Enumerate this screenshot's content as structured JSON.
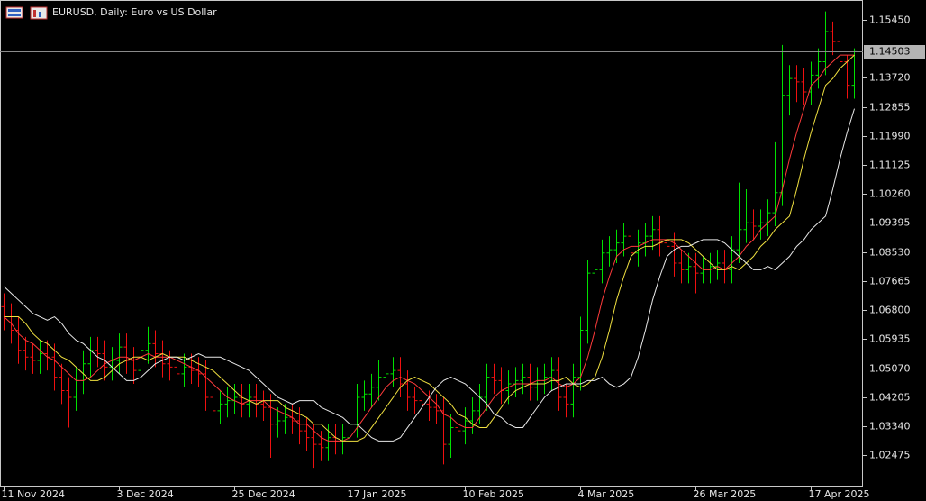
{
  "chart_data": {
    "type": "ohlc",
    "title": "EURUSD, Daily:  Euro vs US Dollar",
    "categories": [
      "11 Nov 2024",
      null,
      null,
      null,
      null,
      null,
      null,
      null,
      null,
      null,
      null,
      null,
      null,
      null,
      null,
      null,
      "3 Dec 2024",
      null,
      null,
      null,
      null,
      null,
      null,
      null,
      null,
      null,
      null,
      null,
      null,
      null,
      null,
      null,
      "25 Dec 2024",
      null,
      null,
      null,
      null,
      null,
      null,
      null,
      null,
      null,
      null,
      null,
      null,
      null,
      null,
      null,
      "17 Jan 2025",
      null,
      null,
      null,
      null,
      null,
      null,
      null,
      null,
      null,
      null,
      null,
      null,
      null,
      null,
      null,
      "10 Feb 2025",
      null,
      null,
      null,
      null,
      null,
      null,
      null,
      null,
      null,
      null,
      null,
      null,
      null,
      null,
      null,
      "4 Mar 2025",
      null,
      null,
      null,
      null,
      null,
      null,
      null,
      null,
      null,
      null,
      null,
      null,
      null,
      null,
      null,
      "26 Mar 2025",
      null,
      null,
      null,
      null,
      null,
      null,
      null,
      null,
      null,
      null,
      null,
      null,
      null,
      null,
      null,
      "17 Apr 2025",
      null,
      null,
      null,
      null,
      null,
      null
    ],
    "open": [
      1.069,
      1.066,
      1.062,
      1.056,
      1.054,
      1.053,
      1.055,
      1.054,
      1.048,
      1.044,
      1.042,
      1.047,
      1.052,
      1.056,
      1.055,
      1.051,
      1.053,
      1.057,
      1.053,
      1.05,
      1.056,
      1.058,
      1.055,
      1.052,
      1.051,
      1.049,
      1.051,
      1.05,
      1.049,
      1.042,
      1.038,
      1.04,
      1.041,
      1.042,
      1.04,
      1.042,
      1.04,
      1.039,
      1.034,
      1.035,
      1.036,
      1.035,
      1.032,
      1.03,
      1.028,
      1.027,
      1.03,
      1.029,
      1.03,
      1.034,
      1.042,
      1.043,
      1.045,
      1.048,
      1.049,
      1.05,
      1.046,
      1.042,
      1.041,
      1.04,
      1.039,
      1.038,
      1.028,
      1.033,
      1.032,
      1.035,
      1.038,
      1.042,
      1.048,
      1.047,
      1.044,
      1.046,
      1.047,
      1.048,
      1.045,
      1.047,
      1.048,
      1.05,
      1.042,
      1.04,
      1.048,
      1.062,
      1.079,
      1.08,
      1.085,
      1.086,
      1.088,
      1.09,
      1.085,
      1.088,
      1.09,
      1.092,
      1.088,
      1.087,
      1.082,
      1.08,
      1.081,
      1.079,
      1.08,
      1.081,
      1.082,
      1.08,
      1.086,
      1.092,
      1.094,
      1.093,
      1.094,
      1.097,
      1.103,
      1.132,
      1.137,
      1.136,
      1.133,
      1.138,
      1.142,
      1.151,
      1.148,
      1.142,
      1.135
    ],
    "high": [
      1.073,
      1.07,
      1.066,
      1.06,
      1.058,
      1.059,
      1.059,
      1.058,
      1.052,
      1.048,
      1.051,
      1.056,
      1.06,
      1.06,
      1.059,
      1.057,
      1.061,
      1.061,
      1.057,
      1.06,
      1.063,
      1.062,
      1.059,
      1.056,
      1.055,
      1.055,
      1.055,
      1.054,
      1.053,
      1.046,
      1.044,
      1.045,
      1.046,
      1.046,
      1.046,
      1.046,
      1.044,
      1.043,
      1.039,
      1.04,
      1.04,
      1.039,
      1.036,
      1.034,
      1.032,
      1.034,
      1.034,
      1.034,
      1.038,
      1.046,
      1.047,
      1.049,
      1.053,
      1.053,
      1.054,
      1.054,
      1.05,
      1.045,
      1.044,
      1.044,
      1.043,
      1.042,
      1.037,
      1.037,
      1.039,
      1.042,
      1.046,
      1.052,
      1.052,
      1.051,
      1.05,
      1.051,
      1.052,
      1.052,
      1.051,
      1.052,
      1.054,
      1.054,
      1.046,
      1.052,
      1.066,
      1.083,
      1.084,
      1.089,
      1.09,
      1.092,
      1.094,
      1.094,
      1.092,
      1.094,
      1.096,
      1.096,
      1.091,
      1.091,
      1.086,
      1.085,
      1.085,
      1.084,
      1.085,
      1.086,
      1.086,
      1.09,
      1.106,
      1.104,
      1.098,
      1.098,
      1.101,
      1.118,
      1.147,
      1.141,
      1.141,
      1.14,
      1.142,
      1.146,
      1.157,
      1.154,
      1.152,
      1.144,
      1.146
    ],
    "low": [
      1.062,
      1.058,
      1.052,
      1.05,
      1.049,
      1.049,
      1.05,
      1.044,
      1.04,
      1.033,
      1.038,
      1.043,
      1.048,
      1.051,
      1.047,
      1.047,
      1.049,
      1.049,
      1.046,
      1.046,
      1.052,
      1.051,
      1.048,
      1.047,
      1.045,
      1.045,
      1.046,
      1.045,
      1.038,
      1.034,
      1.034,
      1.036,
      1.037,
      1.036,
      1.036,
      1.036,
      1.035,
      1.024,
      1.03,
      1.031,
      1.031,
      1.028,
      1.026,
      1.021,
      1.023,
      1.023,
      1.025,
      1.025,
      1.026,
      1.03,
      1.038,
      1.039,
      1.041,
      1.044,
      1.045,
      1.042,
      1.038,
      1.037,
      1.036,
      1.035,
      1.034,
      1.022,
      1.024,
      1.028,
      1.028,
      1.031,
      1.034,
      1.038,
      1.043,
      1.04,
      1.04,
      1.042,
      1.043,
      1.041,
      1.041,
      1.043,
      1.044,
      1.038,
      1.036,
      1.036,
      1.044,
      1.058,
      1.075,
      1.076,
      1.081,
      1.082,
      1.084,
      1.081,
      1.081,
      1.084,
      1.086,
      1.084,
      1.083,
      1.078,
      1.076,
      1.076,
      1.073,
      1.076,
      1.076,
      1.077,
      1.076,
      1.076,
      1.082,
      1.088,
      1.089,
      1.089,
      1.09,
      1.093,
      1.099,
      1.126,
      1.13,
      1.129,
      1.129,
      1.134,
      1.138,
      1.144,
      1.138,
      1.131,
      1.131
    ],
    "close": [
      1.066,
      1.062,
      1.056,
      1.054,
      1.053,
      1.055,
      1.054,
      1.048,
      1.044,
      1.042,
      1.047,
      1.052,
      1.056,
      1.055,
      1.051,
      1.053,
      1.057,
      1.053,
      1.05,
      1.056,
      1.058,
      1.055,
      1.052,
      1.051,
      1.049,
      1.051,
      1.05,
      1.049,
      1.042,
      1.038,
      1.04,
      1.041,
      1.042,
      1.04,
      1.042,
      1.04,
      1.039,
      1.034,
      1.035,
      1.036,
      1.035,
      1.032,
      1.03,
      1.028,
      1.027,
      1.03,
      1.029,
      1.03,
      1.034,
      1.042,
      1.043,
      1.045,
      1.048,
      1.049,
      1.05,
      1.046,
      1.042,
      1.041,
      1.04,
      1.039,
      1.038,
      1.028,
      1.033,
      1.032,
      1.035,
      1.038,
      1.042,
      1.048,
      1.047,
      1.044,
      1.046,
      1.047,
      1.048,
      1.045,
      1.047,
      1.048,
      1.05,
      1.042,
      1.04,
      1.048,
      1.062,
      1.079,
      1.08,
      1.085,
      1.086,
      1.088,
      1.09,
      1.085,
      1.088,
      1.09,
      1.092,
      1.088,
      1.087,
      1.082,
      1.08,
      1.081,
      1.079,
      1.08,
      1.081,
      1.082,
      1.08,
      1.086,
      1.092,
      1.094,
      1.093,
      1.094,
      1.097,
      1.103,
      1.132,
      1.137,
      1.136,
      1.133,
      1.138,
      1.142,
      1.151,
      1.148,
      1.142,
      1.135,
      1.145
    ],
    "up_color": "#00e000",
    "down_color": "#f01010",
    "lines": [
      {
        "color": "#ff3b3b",
        "values": [
          1.066,
          1.064,
          1.061,
          1.059,
          1.058,
          1.056,
          1.054,
          1.053,
          1.051,
          1.049,
          1.047,
          1.047,
          1.048,
          1.05,
          1.052,
          1.053,
          1.054,
          1.054,
          1.053,
          1.054,
          1.055,
          1.054,
          1.054,
          1.054,
          1.053,
          1.052,
          1.051,
          1.05,
          1.048,
          1.046,
          1.044,
          1.042,
          1.041,
          1.04,
          1.041,
          1.041,
          1.041,
          1.039,
          1.038,
          1.037,
          1.036,
          1.034,
          1.034,
          1.032,
          1.03,
          1.029,
          1.029,
          1.029,
          1.03,
          1.033,
          1.036,
          1.039,
          1.042,
          1.045,
          1.047,
          1.048,
          1.047,
          1.046,
          1.044,
          1.042,
          1.04,
          1.037,
          1.036,
          1.034,
          1.033,
          1.033,
          1.036,
          1.039,
          1.042,
          1.044,
          1.045,
          1.046,
          1.046,
          1.046,
          1.047,
          1.047,
          1.048,
          1.046,
          1.045,
          1.046,
          1.048,
          1.054,
          1.062,
          1.071,
          1.078,
          1.084,
          1.086,
          1.087,
          1.087,
          1.088,
          1.089,
          1.089,
          1.089,
          1.088,
          1.086,
          1.084,
          1.082,
          1.08,
          1.08,
          1.081,
          1.08,
          1.082,
          1.084,
          1.087,
          1.089,
          1.092,
          1.094,
          1.096,
          1.104,
          1.113,
          1.121,
          1.128,
          1.135,
          1.137,
          1.14,
          1.142,
          1.144,
          1.144,
          1.144
        ]
      },
      {
        "color": "#f0e040",
        "values": [
          1.066,
          1.066,
          1.066,
          1.064,
          1.061,
          1.059,
          1.058,
          1.056,
          1.054,
          1.053,
          1.051,
          1.049,
          1.047,
          1.047,
          1.048,
          1.05,
          1.052,
          1.053,
          1.054,
          1.054,
          1.053,
          1.054,
          1.055,
          1.054,
          1.054,
          1.054,
          1.053,
          1.052,
          1.051,
          1.05,
          1.048,
          1.046,
          1.044,
          1.042,
          1.041,
          1.04,
          1.041,
          1.041,
          1.041,
          1.039,
          1.038,
          1.037,
          1.036,
          1.034,
          1.034,
          1.032,
          1.03,
          1.029,
          1.029,
          1.029,
          1.03,
          1.033,
          1.036,
          1.039,
          1.042,
          1.045,
          1.047,
          1.048,
          1.047,
          1.046,
          1.044,
          1.042,
          1.04,
          1.037,
          1.036,
          1.034,
          1.033,
          1.033,
          1.036,
          1.039,
          1.042,
          1.044,
          1.045,
          1.046,
          1.046,
          1.046,
          1.047,
          1.047,
          1.048,
          1.046,
          1.045,
          1.046,
          1.048,
          1.054,
          1.062,
          1.071,
          1.078,
          1.084,
          1.086,
          1.087,
          1.087,
          1.088,
          1.089,
          1.089,
          1.089,
          1.088,
          1.086,
          1.084,
          1.082,
          1.08,
          1.08,
          1.081,
          1.08,
          1.082,
          1.084,
          1.087,
          1.089,
          1.092,
          1.094,
          1.096,
          1.104,
          1.113,
          1.121,
          1.128,
          1.135,
          1.137,
          1.14,
          1.142,
          1.144
        ]
      },
      {
        "color": "#e8e8e8",
        "values": [
          1.075,
          1.073,
          1.071,
          1.069,
          1.067,
          1.066,
          1.065,
          1.066,
          1.064,
          1.061,
          1.059,
          1.058,
          1.056,
          1.054,
          1.053,
          1.051,
          1.049,
          1.047,
          1.047,
          1.048,
          1.05,
          1.052,
          1.053,
          1.054,
          1.054,
          1.053,
          1.054,
          1.055,
          1.054,
          1.054,
          1.054,
          1.053,
          1.052,
          1.051,
          1.05,
          1.048,
          1.046,
          1.044,
          1.042,
          1.041,
          1.04,
          1.041,
          1.041,
          1.041,
          1.039,
          1.038,
          1.037,
          1.036,
          1.034,
          1.034,
          1.032,
          1.03,
          1.029,
          1.029,
          1.029,
          1.03,
          1.033,
          1.036,
          1.039,
          1.042,
          1.045,
          1.047,
          1.048,
          1.047,
          1.046,
          1.044,
          1.042,
          1.04,
          1.037,
          1.036,
          1.034,
          1.033,
          1.033,
          1.036,
          1.039,
          1.042,
          1.044,
          1.045,
          1.046,
          1.046,
          1.046,
          1.047,
          1.047,
          1.048,
          1.046,
          1.045,
          1.046,
          1.048,
          1.054,
          1.062,
          1.071,
          1.078,
          1.084,
          1.086,
          1.087,
          1.087,
          1.088,
          1.089,
          1.089,
          1.089,
          1.088,
          1.086,
          1.084,
          1.082,
          1.08,
          1.08,
          1.081,
          1.08,
          1.082,
          1.084,
          1.087,
          1.089,
          1.092,
          1.094,
          1.096,
          1.104,
          1.113,
          1.121,
          1.128
        ]
      }
    ],
    "last_price": {
      "value": 1.14503,
      "label": "1.14503"
    },
    "ylim": [
      1.0154,
      1.1604
    ],
    "yticks": [
      {
        "value": 1.1545,
        "label": "1.15450"
      },
      {
        "value": 1.1372,
        "label": "1.13720"
      },
      {
        "value": 1.12855,
        "label": "1.12855"
      },
      {
        "value": 1.1199,
        "label": "1.11990"
      },
      {
        "value": 1.11125,
        "label": "1.11125"
      },
      {
        "value": 1.1026,
        "label": "1.10260"
      },
      {
        "value": 1.09395,
        "label": "1.09395"
      },
      {
        "value": 1.0853,
        "label": "1.08530"
      },
      {
        "value": 1.07665,
        "label": "1.07665"
      },
      {
        "value": 1.068,
        "label": "1.06800"
      },
      {
        "value": 1.05935,
        "label": "1.05935"
      },
      {
        "value": 1.0507,
        "label": "1.05070"
      },
      {
        "value": 1.04205,
        "label": "1.04205"
      },
      {
        "value": 1.0334,
        "label": "1.03340"
      },
      {
        "value": 1.02475,
        "label": "1.02475"
      }
    ]
  }
}
